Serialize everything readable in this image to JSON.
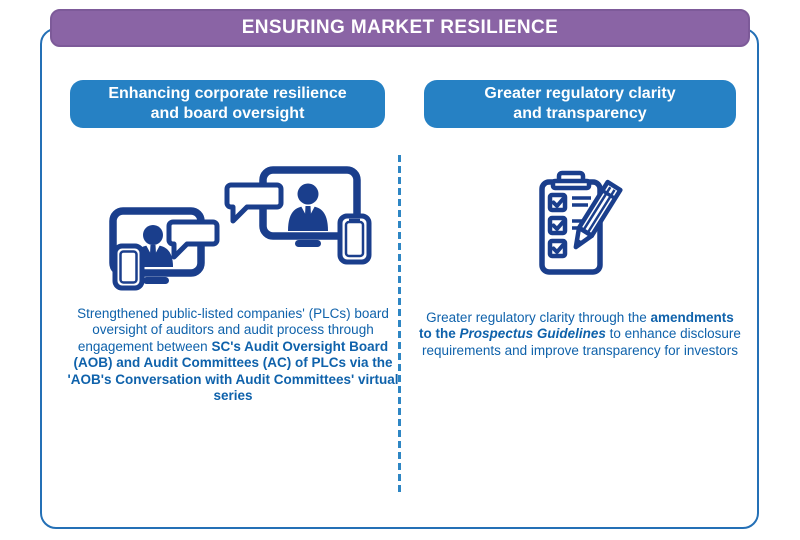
{
  "banner": {
    "title": "ENSURING MARKET RESILIENCE"
  },
  "columns": [
    {
      "heading": "Enhancing corporate resilience\nand board oversight",
      "icon": "dual-screens-conversation-icon",
      "body_segments": [
        {
          "style": "regular",
          "text": "Strengthened public-listed companies' (PLCs) board oversight of auditors and audit process through engagement between "
        },
        {
          "style": "bold",
          "text": "SC's Audit Oversight Board (AOB) and Audit Committees (AC) of PLCs via the 'AOB's Conversation with Audit Committees' virtual series"
        }
      ]
    },
    {
      "heading": "Greater regulatory clarity\nand transparency",
      "icon": "clipboard-checklist-pencil-icon",
      "body_segments": [
        {
          "style": "regular",
          "text": "Greater regulatory clarity through the "
        },
        {
          "style": "bold",
          "text": "amendments to the "
        },
        {
          "style": "bold-italic",
          "text": "Prospectus Guidelines"
        },
        {
          "style": "regular",
          "text": " to enhance disclosure requirements and improve transparency for investors"
        }
      ]
    }
  ],
  "colors": {
    "banner_purple": "#8a64a5",
    "pill_blue": "#2681c4",
    "card_border_blue": "#2470b6",
    "divider_blue": "#2e86c4",
    "text_blue": "#0f62ab",
    "icon_navy": "#1a3e8c"
  }
}
